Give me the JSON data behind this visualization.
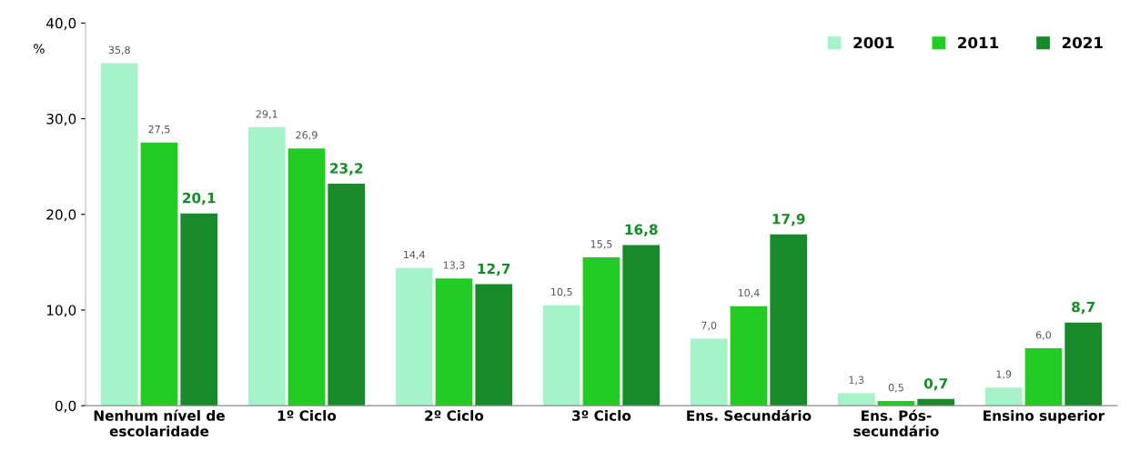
{
  "chart_data": {
    "type": "bar",
    "ylabel": "%",
    "categories": [
      "Nenhum nível de\nescolaridade",
      "1º Ciclo",
      "2º Ciclo",
      "3º Ciclo",
      "Ens. Secundário",
      "Ens. Pós-\nsecundário",
      "Ensino superior"
    ],
    "series": [
      {
        "name": "2001",
        "color": "#a6f2c9",
        "values": [
          35.8,
          29.1,
          14.4,
          10.5,
          7.0,
          1.3,
          1.9
        ],
        "value_labels": [
          "35,8",
          "29,1",
          "14,4",
          "10,5",
          "7,0",
          "1,3",
          "1,9"
        ]
      },
      {
        "name": "2011",
        "color": "#22cc22",
        "values": [
          27.5,
          26.9,
          13.3,
          15.5,
          10.4,
          0.5,
          6.0
        ],
        "value_labels": [
          "27,5",
          "26,9",
          "13,3",
          "15,5",
          "10,4",
          "0,5",
          "6,0"
        ]
      },
      {
        "name": "2021",
        "color": "#178a2a",
        "values": [
          20.1,
          23.2,
          12.7,
          16.8,
          17.9,
          0.7,
          8.7
        ],
        "value_labels": [
          "20,1",
          "23,2",
          "12,7",
          "16,8",
          "17,9",
          "0,7",
          "8,7"
        ]
      }
    ],
    "ylim": [
      0,
      40
    ],
    "yticks": [
      {
        "value": 0,
        "label": "0,0"
      },
      {
        "value": 10,
        "label": "10,0"
      },
      {
        "value": 20,
        "label": "20,0"
      },
      {
        "value": 30,
        "label": "30,0"
      },
      {
        "value": 40,
        "label": "40,0"
      }
    ],
    "grid": false,
    "legend": "top right"
  }
}
